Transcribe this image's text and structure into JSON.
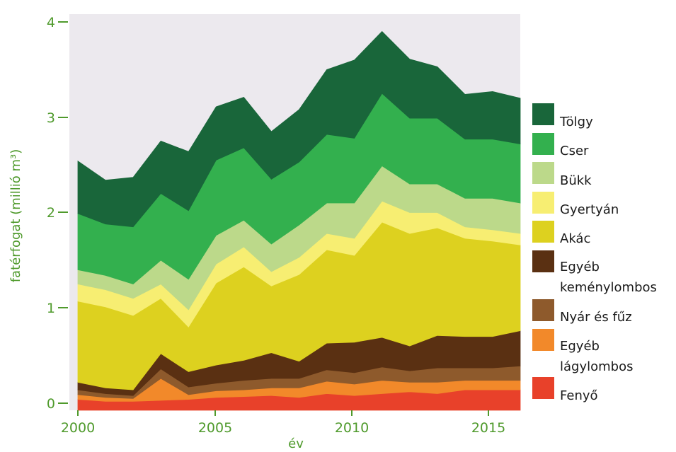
{
  "chart_data": {
    "type": "area",
    "stacked": true,
    "title": "",
    "xlabel": "év",
    "ylabel": "fatérfogat (millió m³)",
    "xlim": [
      2000,
      2016
    ],
    "ylim": [
      0,
      4
    ],
    "x_ticks": [
      "2000",
      "2005",
      "2010",
      "2015"
    ],
    "y_ticks": [
      "0",
      "1",
      "2",
      "3",
      "4"
    ],
    "grid": false,
    "legend_position": "right",
    "plot_background": "#ece9ee",
    "x": [
      2000,
      2001,
      2002,
      2003,
      2004,
      2005,
      2006,
      2007,
      2008,
      2009,
      2010,
      2011,
      2012,
      2013,
      2014,
      2015,
      2016
    ],
    "series": [
      {
        "name": "Fenyő",
        "color": "#e8412a",
        "values": [
          0.04,
          0.02,
          0.02,
          0.03,
          0.04,
          0.06,
          0.07,
          0.08,
          0.06,
          0.1,
          0.08,
          0.1,
          0.12,
          0.1,
          0.14,
          0.14,
          0.14
        ]
      },
      {
        "name": "Egyéb lágylombos",
        "color": "#f2892a",
        "values": [
          0.05,
          0.04,
          0.03,
          0.23,
          0.05,
          0.07,
          0.07,
          0.08,
          0.1,
          0.13,
          0.12,
          0.14,
          0.1,
          0.12,
          0.1,
          0.1,
          0.1
        ]
      },
      {
        "name": "Nyár és fűz",
        "color": "#8e5a2c",
        "values": [
          0.05,
          0.04,
          0.03,
          0.1,
          0.08,
          0.08,
          0.1,
          0.1,
          0.1,
          0.12,
          0.12,
          0.14,
          0.12,
          0.15,
          0.13,
          0.13,
          0.15
        ]
      },
      {
        "name": "Egyéb keménylombos",
        "color": "#5a3012",
        "values": [
          0.08,
          0.06,
          0.06,
          0.16,
          0.16,
          0.19,
          0.21,
          0.27,
          0.18,
          0.28,
          0.32,
          0.31,
          0.26,
          0.34,
          0.33,
          0.33,
          0.37
        ]
      },
      {
        "name": "Akác",
        "color": "#ddd11f",
        "values": [
          0.85,
          0.85,
          0.78,
          0.58,
          0.47,
          0.86,
          0.98,
          0.7,
          0.91,
          0.98,
          0.91,
          1.21,
          1.18,
          1.13,
          1.03,
          1.0,
          0.9
        ]
      },
      {
        "name": "Gyertyán",
        "color": "#f7ee72",
        "values": [
          0.18,
          0.18,
          0.18,
          0.15,
          0.18,
          0.2,
          0.21,
          0.15,
          0.18,
          0.17,
          0.18,
          0.22,
          0.22,
          0.16,
          0.12,
          0.12,
          0.12
        ]
      },
      {
        "name": "Bükk",
        "color": "#bcd98a",
        "values": [
          0.15,
          0.15,
          0.15,
          0.25,
          0.32,
          0.3,
          0.28,
          0.29,
          0.34,
          0.32,
          0.37,
          0.37,
          0.3,
          0.3,
          0.3,
          0.33,
          0.32
        ]
      },
      {
        "name": "Cser",
        "color": "#33b04e",
        "values": [
          0.59,
          0.54,
          0.6,
          0.7,
          0.72,
          0.79,
          0.76,
          0.68,
          0.66,
          0.72,
          0.68,
          0.76,
          0.69,
          0.69,
          0.62,
          0.62,
          0.62
        ]
      },
      {
        "name": "Tölgy",
        "color": "#19663a",
        "values": [
          0.55,
          0.46,
          0.52,
          0.55,
          0.62,
          0.56,
          0.53,
          0.5,
          0.55,
          0.68,
          0.82,
          0.65,
          0.62,
          0.54,
          0.47,
          0.5,
          0.48
        ]
      }
    ]
  }
}
